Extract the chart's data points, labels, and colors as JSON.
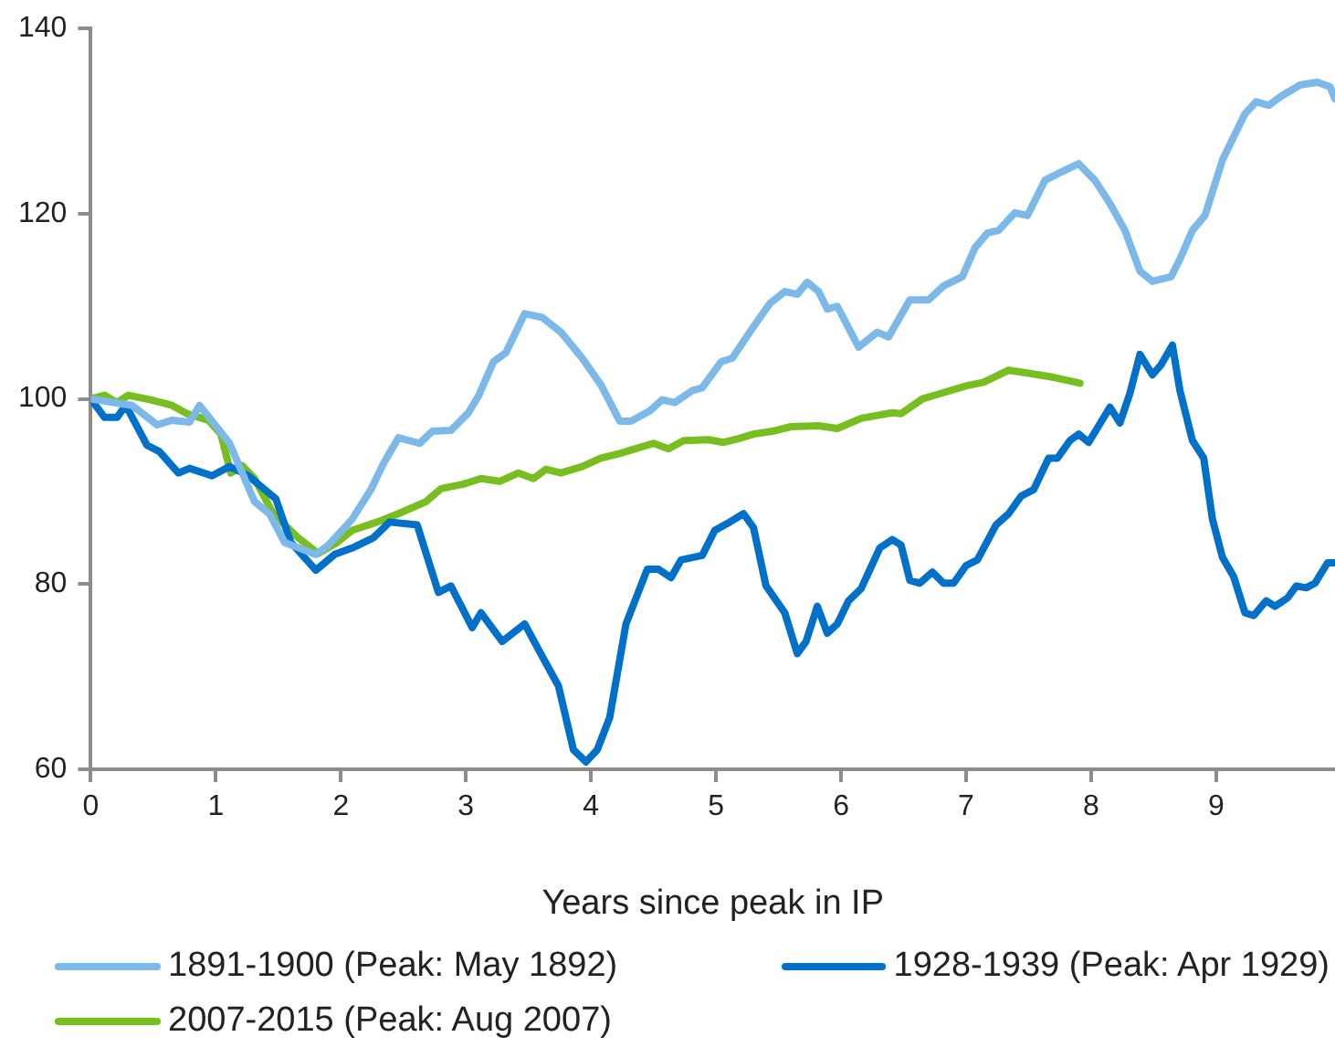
{
  "chart_data": {
    "type": "line",
    "xlabel": "Years since peak in IP",
    "xlim": [
      0,
      9.95
    ],
    "xticks": [
      0,
      1,
      2,
      3,
      4,
      5,
      6,
      7,
      8,
      9
    ],
    "ylim": [
      60,
      140
    ],
    "yticks": [
      60,
      80,
      100,
      120,
      140
    ],
    "legend": "bottom",
    "marker": "none",
    "line_style": "solid",
    "series": [
      {
        "name": "1891-1900 (Peak: May 1892)",
        "color": "#7cb8e8",
        "x": [
          0,
          0.33,
          0.53,
          0.65,
          0.79,
          0.87,
          1.11,
          1.31,
          1.43,
          1.55,
          1.8,
          1.9,
          2.09,
          2.24,
          2.34,
          2.46,
          2.63,
          2.73,
          2.88,
          3.02,
          3.1,
          3.22,
          3.32,
          3.47,
          3.61,
          3.76,
          3.93,
          4.08,
          4.23,
          4.32,
          4.47,
          4.57,
          4.67,
          4.81,
          4.89,
          5.04,
          5.13,
          5.3,
          5.43,
          5.55,
          5.65,
          5.73,
          5.82,
          5.89,
          5.97,
          6.14,
          6.29,
          6.38,
          6.55,
          6.7,
          6.82,
          6.97,
          7.07,
          7.17,
          7.26,
          7.39,
          7.49,
          7.63,
          7.76,
          7.9,
          8.03,
          8.15,
          8.27,
          8.39,
          8.49,
          8.64,
          8.71,
          8.81,
          8.91,
          9.05,
          9.23,
          9.32,
          9.42,
          9.52,
          9.67,
          9.81,
          9.91,
          9.95
        ],
        "values": [
          100,
          99.3,
          97.2,
          97.7,
          97.5,
          99.3,
          95.2,
          88.9,
          87.6,
          84.5,
          83.2,
          84.2,
          87,
          90.2,
          93,
          95.8,
          95.2,
          96.5,
          96.6,
          98.5,
          100.3,
          104,
          105,
          109.2,
          108.8,
          107.2,
          104.4,
          101.5,
          97.6,
          97.6,
          98.7,
          99.9,
          99.6,
          100.9,
          101.2,
          104,
          104.4,
          107.8,
          110.3,
          111.6,
          111.3,
          112.6,
          111.6,
          109.7,
          110,
          105.6,
          107.2,
          106.7,
          110.7,
          110.7,
          112.2,
          113.2,
          116.3,
          117.9,
          118.2,
          120.1,
          119.8,
          123.6,
          124.5,
          125.4,
          123.6,
          121.1,
          118.2,
          113.8,
          112.7,
          113.2,
          115.1,
          118.2,
          119.8,
          125.8,
          130.8,
          132.1,
          131.7,
          132.7,
          133.9,
          134.2,
          133.7,
          132.4
        ]
      },
      {
        "name": "1928-1939 (Peak: Apr 1929)",
        "color": "#0070c8",
        "x": [
          0,
          0.11,
          0.21,
          0.28,
          0.45,
          0.55,
          0.7,
          0.79,
          0.97,
          1.11,
          1.26,
          1.48,
          1.6,
          1.8,
          1.95,
          2.09,
          2.26,
          2.39,
          2.61,
          2.78,
          2.88,
          3.05,
          3.12,
          3.29,
          3.47,
          3.61,
          3.74,
          3.86,
          3.96,
          4.05,
          4.15,
          4.28,
          4.45,
          4.54,
          4.64,
          4.72,
          4.89,
          4.99,
          5.11,
          5.22,
          5.3,
          5.4,
          5.55,
          5.65,
          5.72,
          5.81,
          5.89,
          5.97,
          6.06,
          6.16,
          6.31,
          6.41,
          6.48,
          6.55,
          6.63,
          6.73,
          6.82,
          6.9,
          7,
          7.09,
          7.24,
          7.34,
          7.44,
          7.54,
          7.66,
          7.73,
          7.83,
          7.9,
          7.98,
          8.15,
          8.23,
          8.31,
          8.39,
          8.49,
          8.56,
          8.65,
          8.71,
          8.81,
          8.9,
          8.97,
          9.05,
          9.14,
          9.23,
          9.3,
          9.4,
          9.47,
          9.57,
          9.64,
          9.72,
          9.79,
          9.89,
          9.95
        ],
        "values": [
          100,
          98,
          98,
          99.3,
          95,
          94.3,
          92,
          92.5,
          91.7,
          92.7,
          91.7,
          89.2,
          84.5,
          81.5,
          83.2,
          83.9,
          85,
          86.7,
          86.4,
          79.1,
          79.8,
          75.3,
          76.9,
          73.8,
          75.7,
          72.2,
          69,
          62.1,
          60.8,
          62.1,
          65.6,
          75.7,
          81.6,
          81.6,
          80.7,
          82.6,
          83.1,
          85.8,
          86.7,
          87.6,
          86.1,
          79.8,
          76.9,
          72.5,
          73.8,
          77.6,
          74.7,
          75.7,
          78.2,
          79.5,
          83.9,
          84.8,
          84.2,
          80.4,
          80.1,
          81.3,
          80.1,
          80.1,
          82,
          82.6,
          86.4,
          87.6,
          89.5,
          90.2,
          93.6,
          93.6,
          95.5,
          96.2,
          95.3,
          99.1,
          97.4,
          100.6,
          104.8,
          102.6,
          103.7,
          105.8,
          100.9,
          95.5,
          93.6,
          87,
          82.9,
          80.8,
          76.9,
          76.6,
          78.2,
          77.6,
          78.5,
          79.8,
          79.6,
          80.1,
          82.3,
          82.3
        ]
      },
      {
        "name": "2007-2015 (Peak: Aug 2007)",
        "color": "#78be20",
        "x": [
          0,
          0.11,
          0.21,
          0.3,
          0.48,
          0.65,
          0.77,
          0.94,
          1.04,
          1.12,
          1.21,
          1.31,
          1.46,
          1.65,
          1.82,
          1.97,
          2.09,
          2.29,
          2.46,
          2.68,
          2.8,
          2.98,
          3.12,
          3.27,
          3.42,
          3.54,
          3.64,
          3.76,
          3.93,
          4.08,
          4.23,
          4.35,
          4.5,
          4.62,
          4.74,
          4.94,
          5.06,
          5.18,
          5.3,
          5.45,
          5.6,
          5.82,
          5.97,
          6.16,
          6.41,
          6.48,
          6.65,
          6.8,
          7,
          7.14,
          7.34,
          7.49,
          7.71,
          7.91
        ],
        "values": [
          100,
          100.4,
          99.6,
          100.4,
          99.9,
          99.3,
          98.4,
          97.7,
          96.2,
          92,
          92.8,
          91.4,
          87.6,
          85.1,
          83.3,
          84.5,
          85.8,
          86.7,
          87.6,
          88.9,
          90.3,
          90.8,
          91.4,
          91.1,
          92,
          91.4,
          92.4,
          92,
          92.7,
          93.6,
          94.1,
          94.6,
          95.2,
          94.6,
          95.5,
          95.6,
          95.3,
          95.7,
          96.2,
          96.5,
          97,
          97.1,
          96.8,
          97.9,
          98.5,
          98.4,
          100,
          100.6,
          101.4,
          101.8,
          103.1,
          102.8,
          102.3,
          101.7
        ]
      }
    ]
  }
}
